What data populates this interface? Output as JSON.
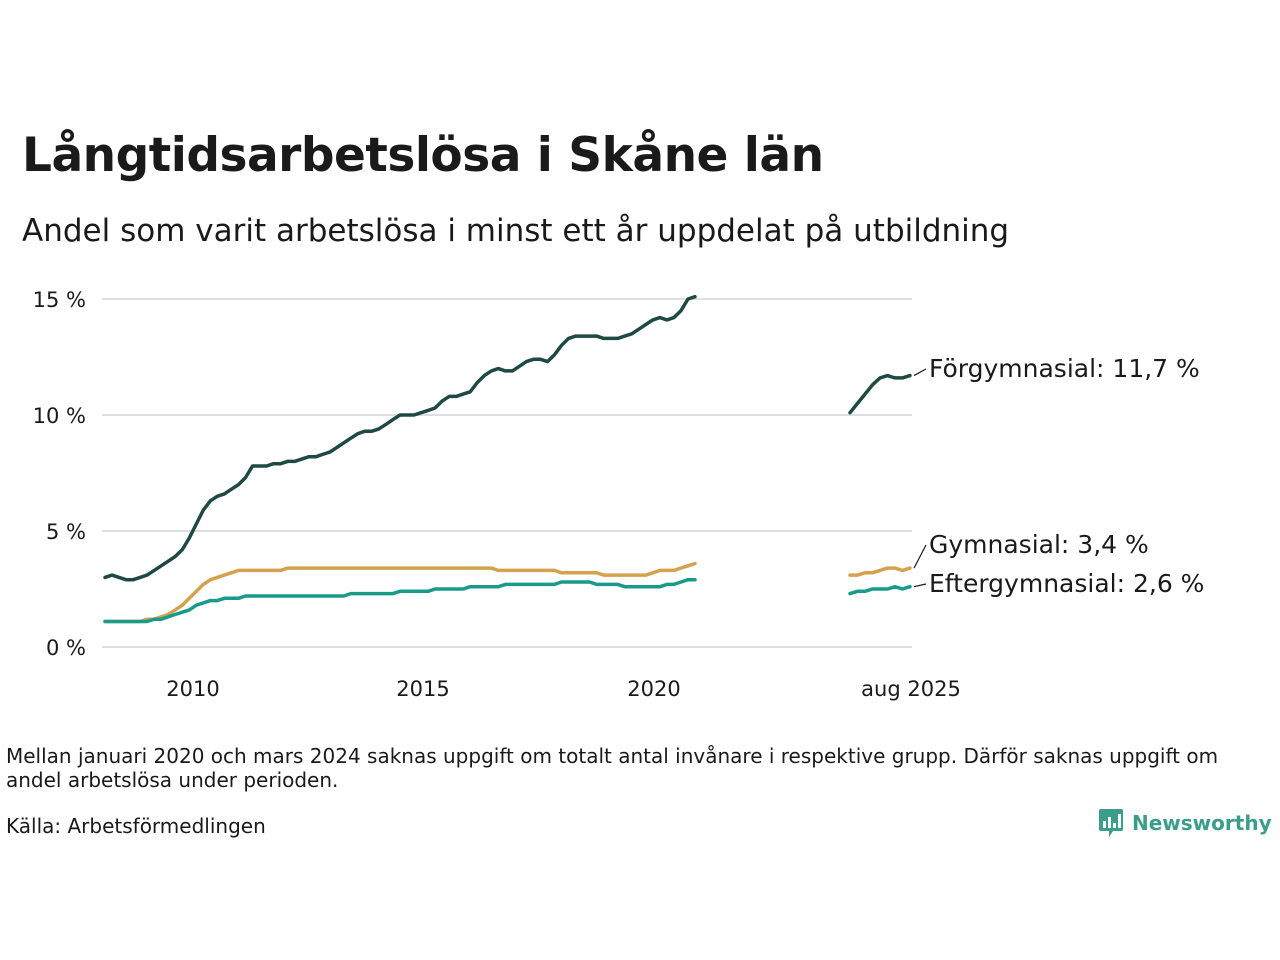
{
  "title": "Långtidsarbetslösa i Skåne län",
  "subtitle": "Andel som varit arbetslösa i minst ett år uppdelat på utbildning",
  "note": "Mellan januari 2020 och mars 2024 saknas uppgift om totalt antal invånare i respektive grupp. Därför saknas uppgift om andel arbetslösa under perioden.",
  "source": "Källa: Arbetsförmedlingen",
  "brand": {
    "name": "Newsworthy",
    "color": "#3a9e8a"
  },
  "chart_data": {
    "type": "line",
    "title": "Långtidsarbetslösa i Skåne län",
    "subtitle": "Andel som varit arbetslösa i minst ett år uppdelat på utbildning",
    "xlabel": "",
    "ylabel": "",
    "ylim": [
      0,
      15.5
    ],
    "yticks": [
      0,
      5,
      10,
      15
    ],
    "ytick_labels": [
      "0 %",
      "5 %",
      "10 %",
      "15 %"
    ],
    "x_axis_note": "date axis with a break between the left and right segments",
    "xtick_labels": [
      "2010",
      "2015",
      "2020",
      "aug 2025"
    ],
    "grid": "horizontal",
    "legend": "end-of-line labels",
    "segments": [
      {
        "name": "left",
        "x_range": [
          "2008-01",
          "2020-12"
        ]
      },
      {
        "name": "right",
        "x_range": [
          "2024-04",
          "2025-08"
        ]
      }
    ],
    "series": [
      {
        "name": "Förgymnasial",
        "end_label": "Förgymnasial: 11,7 %",
        "color": "#1f4a44",
        "left": [
          3.0,
          3.1,
          3.0,
          2.9,
          2.9,
          3.0,
          3.1,
          3.3,
          3.5,
          3.7,
          3.9,
          4.2,
          4.7,
          5.3,
          5.9,
          6.3,
          6.5,
          6.6,
          6.8,
          7.0,
          7.3,
          7.8,
          7.8,
          7.8,
          7.9,
          7.9,
          8.0,
          8.0,
          8.1,
          8.2,
          8.2,
          8.3,
          8.4,
          8.6,
          8.8,
          9.0,
          9.2,
          9.3,
          9.3,
          9.4,
          9.6,
          9.8,
          10.0,
          10.0,
          10.0,
          10.1,
          10.2,
          10.3,
          10.6,
          10.8,
          10.8,
          10.9,
          11.0,
          11.4,
          11.7,
          11.9,
          12.0,
          11.9,
          11.9,
          12.1,
          12.3,
          12.4,
          12.4,
          12.3,
          12.6,
          13.0,
          13.3,
          13.4,
          13.4,
          13.4,
          13.4,
          13.3,
          13.3,
          13.3,
          13.4,
          13.5,
          13.7,
          13.9,
          14.1,
          14.2,
          14.1,
          14.2,
          14.5,
          15.0,
          15.1
        ],
        "right": [
          10.1,
          10.5,
          10.9,
          11.3,
          11.6,
          11.7,
          11.6,
          11.6,
          11.7
        ]
      },
      {
        "name": "Gymnasial",
        "end_label": "Gymnasial:  3,4 %",
        "color": "#d4a24c",
        "left": [
          1.1,
          1.1,
          1.1,
          1.1,
          1.1,
          1.1,
          1.2,
          1.2,
          1.3,
          1.4,
          1.6,
          1.8,
          2.1,
          2.4,
          2.7,
          2.9,
          3.0,
          3.1,
          3.2,
          3.3,
          3.3,
          3.3,
          3.3,
          3.3,
          3.3,
          3.3,
          3.4,
          3.4,
          3.4,
          3.4,
          3.4,
          3.4,
          3.4,
          3.4,
          3.4,
          3.4,
          3.4,
          3.4,
          3.4,
          3.4,
          3.4,
          3.4,
          3.4,
          3.4,
          3.4,
          3.4,
          3.4,
          3.4,
          3.4,
          3.4,
          3.4,
          3.4,
          3.4,
          3.4,
          3.4,
          3.4,
          3.3,
          3.3,
          3.3,
          3.3,
          3.3,
          3.3,
          3.3,
          3.3,
          3.3,
          3.2,
          3.2,
          3.2,
          3.2,
          3.2,
          3.2,
          3.1,
          3.1,
          3.1,
          3.1,
          3.1,
          3.1,
          3.1,
          3.2,
          3.3,
          3.3,
          3.3,
          3.4,
          3.5,
          3.6
        ],
        "right": [
          3.1,
          3.1,
          3.2,
          3.2,
          3.3,
          3.4,
          3.4,
          3.3,
          3.4
        ]
      },
      {
        "name": "Eftergymnasial",
        "end_label": "Eftergymnasial:  2,6 %",
        "color": "#1a9a88",
        "left": [
          1.1,
          1.1,
          1.1,
          1.1,
          1.1,
          1.1,
          1.1,
          1.2,
          1.2,
          1.3,
          1.4,
          1.5,
          1.6,
          1.8,
          1.9,
          2.0,
          2.0,
          2.1,
          2.1,
          2.1,
          2.2,
          2.2,
          2.2,
          2.2,
          2.2,
          2.2,
          2.2,
          2.2,
          2.2,
          2.2,
          2.2,
          2.2,
          2.2,
          2.2,
          2.2,
          2.3,
          2.3,
          2.3,
          2.3,
          2.3,
          2.3,
          2.3,
          2.4,
          2.4,
          2.4,
          2.4,
          2.4,
          2.5,
          2.5,
          2.5,
          2.5,
          2.5,
          2.6,
          2.6,
          2.6,
          2.6,
          2.6,
          2.7,
          2.7,
          2.7,
          2.7,
          2.7,
          2.7,
          2.7,
          2.7,
          2.8,
          2.8,
          2.8,
          2.8,
          2.8,
          2.7,
          2.7,
          2.7,
          2.7,
          2.6,
          2.6,
          2.6,
          2.6,
          2.6,
          2.6,
          2.7,
          2.7,
          2.8,
          2.9,
          2.9
        ],
        "right": [
          2.3,
          2.4,
          2.4,
          2.5,
          2.5,
          2.5,
          2.6,
          2.5,
          2.6
        ]
      }
    ]
  }
}
